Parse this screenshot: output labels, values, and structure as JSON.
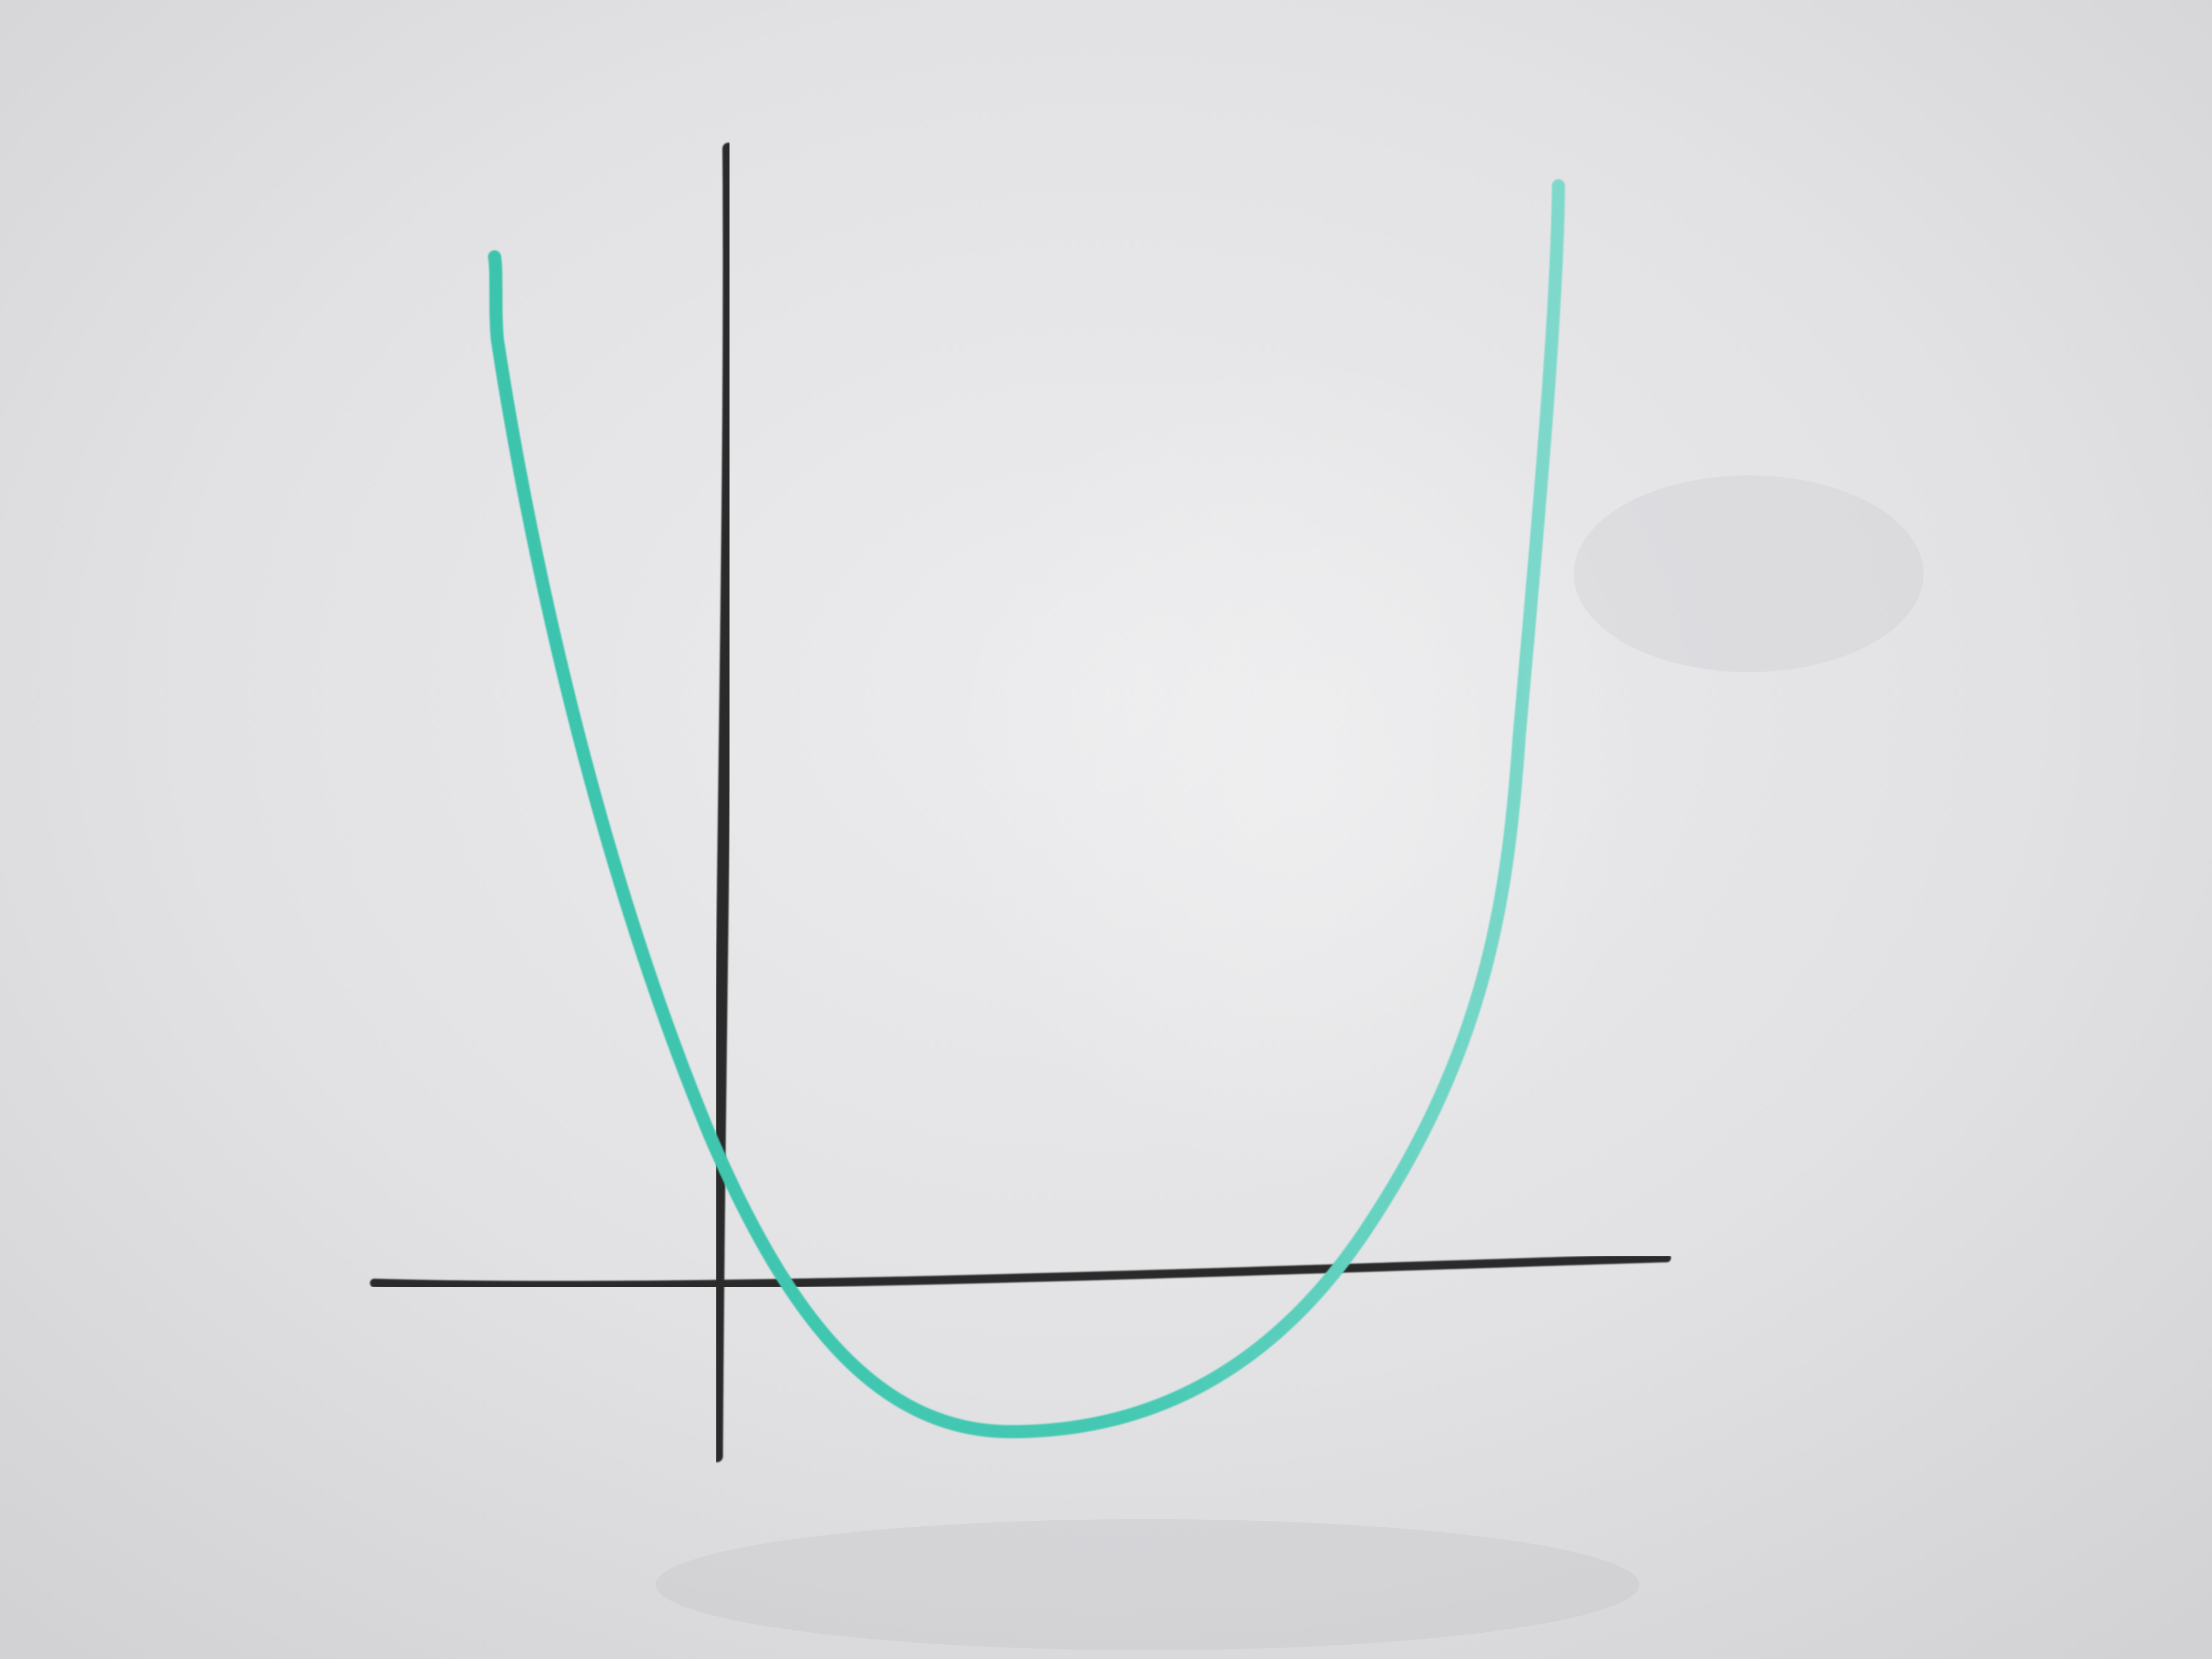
{
  "scene": {
    "description_kind": "whiteboard-sketch",
    "colors": {
      "board_light": "#e6e6e8",
      "board_mid": "#dedee0",
      "board_shadow": "#d0d0d2",
      "axis_ink": "#2a2a2a",
      "curve_ink": "#3fc7b0",
      "curve_ink_light": "#6fd6c6",
      "smudge": "#9a9a9a"
    },
    "elements": [
      {
        "name": "vertical-axis-line",
        "type": "marker-stroke",
        "color_key": "axis_ink"
      },
      {
        "name": "horizontal-axis-line",
        "type": "marker-stroke",
        "color_key": "axis_ink"
      },
      {
        "name": "parabola-curve",
        "type": "marker-stroke",
        "color_key": "curve_ink",
        "shape": "upward-opening parabola"
      }
    ]
  }
}
